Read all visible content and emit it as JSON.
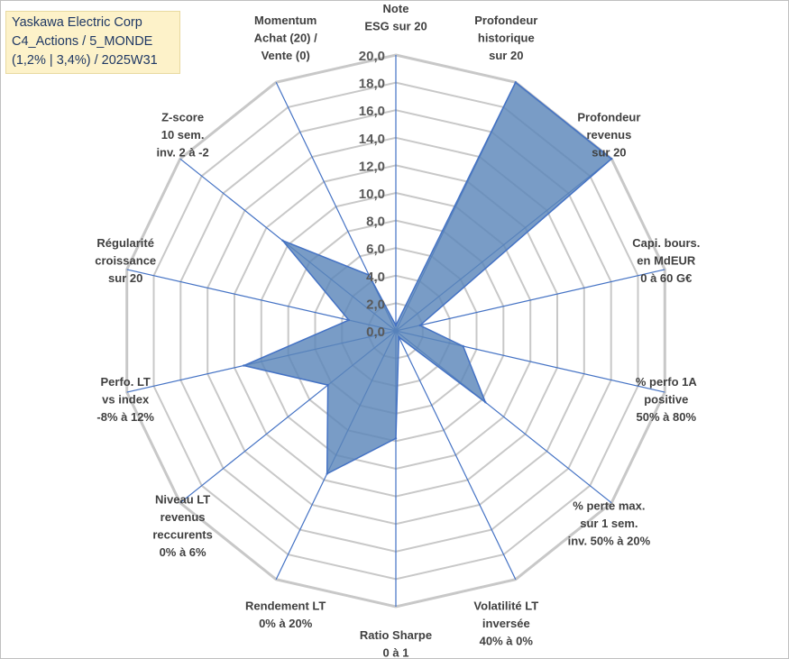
{
  "title_lines": [
    "Yaskawa Electric Corp",
    "C4_Actions / 5_MONDE",
    "(1,2% | 3,4%) / 2025W31"
  ],
  "colors": {
    "fill": "#5b86b9",
    "stroke": "#4472c4",
    "grid": "#c8c8c8",
    "spoke": "#4472c4",
    "title_bg": "#fdf2c9"
  },
  "chart_data": {
    "type": "radar",
    "rmin": 0,
    "rmax": 20,
    "tick_step": 2,
    "tick_labels": [
      "0,0",
      "2,0",
      "4,0",
      "6,0",
      "8,0",
      "10,0",
      "12,0",
      "14,0",
      "16,0",
      "18,0",
      "20,0"
    ],
    "grid": true,
    "axes": [
      {
        "lines": [
          "Note",
          "ESG sur 20"
        ],
        "value": 0.4
      },
      {
        "lines": [
          "Profondeur",
          "historique",
          "sur 20"
        ],
        "value": 20
      },
      {
        "lines": [
          "Profondeur",
          "revenus",
          "sur 20"
        ],
        "value": 20
      },
      {
        "lines": [
          "Capi. bours.",
          "en MdEUR",
          "0 à 60 G€"
        ],
        "value": 1.8
      },
      {
        "lines": [
          "% perfo 1A",
          "positive",
          "50% à 80%"
        ],
        "value": 5.0
      },
      {
        "lines": [
          "% perte max.",
          "sur 1 sem.",
          "inv. 50% à 20%"
        ],
        "value": 8.3
      },
      {
        "lines": [
          "Volatilité LT",
          "inversée",
          "40% à 0%"
        ],
        "value": 0.5
      },
      {
        "lines": [
          "Ratio Sharpe",
          "0 à 1"
        ],
        "value": 7.8
      },
      {
        "lines": [
          "Rendement LT",
          "0% à 20%"
        ],
        "value": 11.5
      },
      {
        "lines": [
          "Niveau LT",
          "revenus",
          "reccurents",
          "0% à 6%"
        ],
        "value": 6.3
      },
      {
        "lines": [
          "Perfo. LT",
          "vs index",
          "-8% à 12%"
        ],
        "value": 11.3
      },
      {
        "lines": [
          "Régularité",
          "croissance",
          "sur 20"
        ],
        "value": 3.5
      },
      {
        "lines": [
          "Z-score",
          "10 sem.",
          "inv. 2 à -2"
        ],
        "value": 10.5
      },
      {
        "lines": [
          "Momentum",
          "Achat (20) /",
          "Vente (0)"
        ],
        "value": 4.5
      }
    ]
  }
}
